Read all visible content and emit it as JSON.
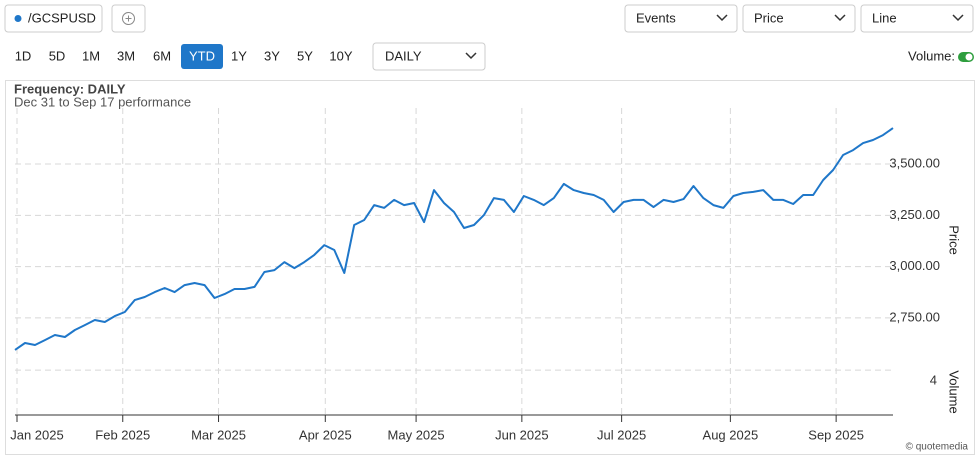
{
  "toolbar": {
    "events": "Events",
    "price": "Price",
    "line": "Line",
    "ranges": [
      "1D",
      "5D",
      "1M",
      "3M",
      "6M",
      "YTD",
      "1Y",
      "3Y",
      "5Y",
      "10Y"
    ],
    "active_range": "YTD",
    "frequency_select": "DAILY",
    "volume_toggle": "Volume:"
  },
  "chart_data": {
    "type": "line",
    "title": "Frequency: DAILY",
    "subtitle": "Dec 31 to Sep 17 performance",
    "y_label": "Price",
    "y2_label": "Volume",
    "credit": "© quotemedia",
    "series": [
      {
        "name": "/GCSPUSD",
        "color": "#1f77c9",
        "values": [
          2594,
          2628,
          2618,
          2642,
          2667,
          2657,
          2691,
          2715,
          2740,
          2730,
          2759,
          2779,
          2837,
          2852,
          2876,
          2896,
          2876,
          2910,
          2920,
          2910,
          2847,
          2866,
          2891,
          2891,
          2901,
          2974,
          2983,
          3022,
          2993,
          3022,
          3057,
          3105,
          3081,
          2969,
          3203,
          3227,
          3300,
          3286,
          3325,
          3300,
          3310,
          3217,
          3373,
          3310,
          3266,
          3188,
          3203,
          3251,
          3334,
          3325,
          3266,
          3344,
          3325,
          3300,
          3334,
          3403,
          3373,
          3359,
          3349,
          3325,
          3266,
          3315,
          3325,
          3325,
          3290,
          3325,
          3315,
          3329,
          3393,
          3334,
          3300,
          3286,
          3344,
          3359,
          3364,
          3373,
          3325,
          3325,
          3305,
          3349,
          3349,
          3422,
          3471,
          3544,
          3568,
          3602,
          3617,
          3641,
          3675
        ]
      }
    ],
    "xlim": [
      0,
      88
    ],
    "xticks": [
      {
        "value": 0.2,
        "label": "Jan 2025"
      },
      {
        "value": 10.8,
        "label": "Feb 2025"
      },
      {
        "value": 20.4,
        "label": "Mar 2025"
      },
      {
        "value": 31.1,
        "label": "Apr 2025"
      },
      {
        "value": 40.2,
        "label": "May 2025"
      },
      {
        "value": 50.8,
        "label": "Jun 2025"
      },
      {
        "value": 60.8,
        "label": "Jul 2025"
      },
      {
        "value": 71.7,
        "label": "Aug 2025"
      },
      {
        "value": 82.3,
        "label": "Sep 2025"
      }
    ],
    "ylim": [
      2545,
      3773
    ],
    "yticks": [
      {
        "value": 2750,
        "label": "2,750.00"
      },
      {
        "value": 3000,
        "label": "3,000.00"
      },
      {
        "value": 3250,
        "label": "3,250.00"
      },
      {
        "value": 3500,
        "label": "3,500.00"
      }
    ],
    "y2lim": [
      0,
      6.5
    ],
    "y2ticks": [
      4
    ],
    "grid": true
  }
}
